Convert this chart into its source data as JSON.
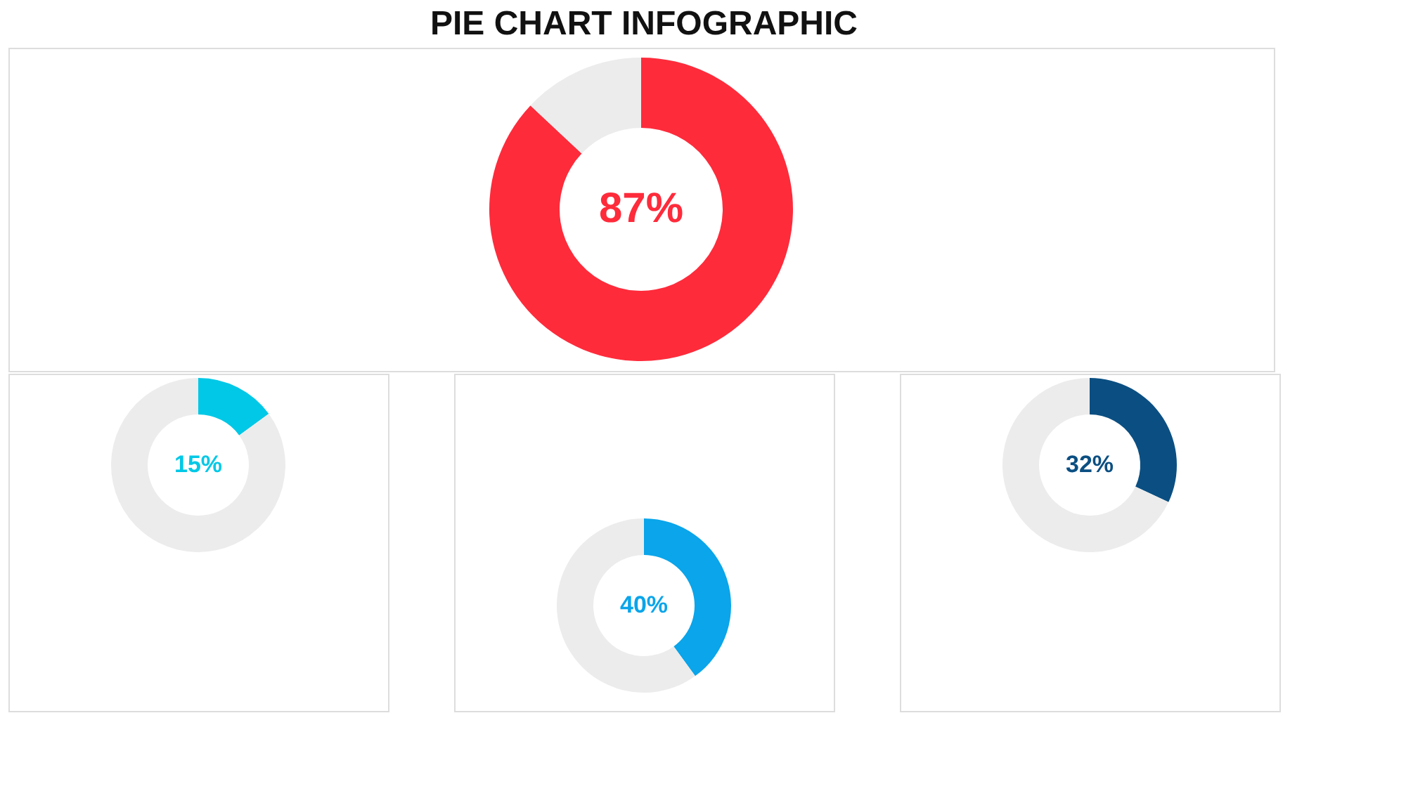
{
  "chart_data": [
    {
      "type": "donut",
      "title": "PIE CHART INFOGRAPHIC",
      "categories": [
        null,
        null
      ],
      "values": [
        87,
        13
      ],
      "colors": [
        "#fe2b3b",
        "#ececec"
      ],
      "value_labels": [
        "87%",
        null
      ]
    },
    {
      "type": "donut",
      "categories": [
        null,
        null
      ],
      "values": [
        15,
        85
      ],
      "colors": [
        "#00c8e6",
        "#ececec"
      ],
      "value_labels": [
        "15%",
        null
      ]
    },
    {
      "type": "donut",
      "categories": [
        null,
        null
      ],
      "values": [
        40,
        60
      ],
      "colors": [
        "#0aa5ea",
        "#ececec"
      ],
      "value_labels": [
        "40%",
        null
      ]
    },
    {
      "type": "donut",
      "categories": [
        null,
        null
      ],
      "values": [
        32,
        68
      ],
      "colors": [
        "#0b4f82",
        "#ececec"
      ],
      "value_labels": [
        "32%",
        null
      ]
    }
  ]
}
